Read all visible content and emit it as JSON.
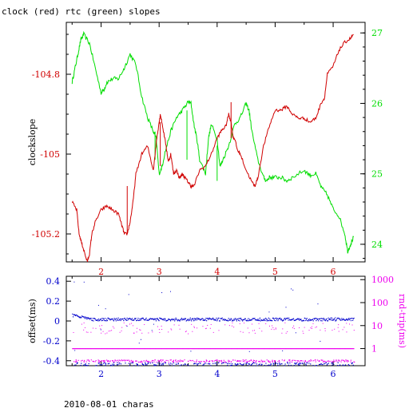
{
  "title": "clock (red) rtc (green) slopes",
  "footer": "2010-08-01 charas",
  "colors": {
    "red": "#d00000",
    "green": "#00dd00",
    "blue": "#0000cc",
    "magenta": "#ee00ee",
    "black": "#000000"
  },
  "chart_data": [
    {
      "type": "line",
      "x_ticks": [
        "2",
        "3",
        "4",
        "5",
        "6"
      ],
      "xlim": [
        1.4,
        6.55
      ],
      "left_axis": {
        "label": "clockslope",
        "ticks": [
          "-104.8",
          "-105",
          "-105.2"
        ],
        "ylim": [
          -105.27,
          -104.67
        ]
      },
      "right_axis": {
        "ticks": [
          "27",
          "26",
          "25",
          "24"
        ],
        "ylim": [
          23.75,
          27.15
        ]
      },
      "series": [
        {
          "name": "clock",
          "axis": "left",
          "color": "red",
          "x": [
            1.5,
            1.58,
            1.62,
            1.66,
            1.7,
            1.76,
            1.8,
            1.84,
            1.9,
            2.0,
            2.1,
            2.2,
            2.3,
            2.36,
            2.4,
            2.45,
            2.5,
            2.55,
            2.6,
            2.7,
            2.8,
            2.9,
            2.96,
            3.0,
            3.02,
            3.06,
            3.12,
            3.16,
            3.2,
            3.25,
            3.3,
            3.35,
            3.4,
            3.45,
            3.5,
            3.55,
            3.6,
            3.7,
            3.8,
            3.9,
            4.0,
            4.08,
            4.15,
            4.2,
            4.24,
            4.28,
            4.3,
            4.35,
            4.4,
            4.5,
            4.6,
            4.65,
            4.7,
            4.8,
            4.9,
            5.0,
            5.1,
            5.2,
            5.3,
            5.4,
            5.5,
            5.6,
            5.7,
            5.8,
            5.85,
            5.9,
            6.0,
            6.1,
            6.2,
            6.3,
            6.35
          ],
          "y": [
            -105.12,
            -105.14,
            -105.2,
            -105.22,
            -105.24,
            -105.27,
            -105.25,
            -105.2,
            -105.17,
            -105.14,
            -105.13,
            -105.14,
            -105.15,
            -105.18,
            -105.2,
            -105.2,
            -105.17,
            -105.12,
            -105.05,
            -105.0,
            -104.98,
            -105.04,
            -104.96,
            -104.92,
            -104.9,
            -104.93,
            -104.98,
            -105.02,
            -105.0,
            -105.05,
            -105.04,
            -105.06,
            -105.05,
            -105.06,
            -105.07,
            -105.08,
            -105.08,
            -105.04,
            -105.03,
            -105.0,
            -104.96,
            -104.94,
            -104.93,
            -104.9,
            -104.92,
            -104.96,
            -104.96,
            -104.99,
            -105.0,
            -105.04,
            -105.07,
            -105.08,
            -105.06,
            -104.98,
            -104.93,
            -104.89,
            -104.89,
            -104.88,
            -104.9,
            -104.91,
            -104.91,
            -104.92,
            -104.91,
            -104.87,
            -104.86,
            -104.8,
            -104.78,
            -104.74,
            -104.72,
            -104.71,
            -104.7
          ]
        },
        {
          "name": "rtc",
          "axis": "right",
          "color": "green",
          "x": [
            1.5,
            1.55,
            1.6,
            1.65,
            1.7,
            1.8,
            1.9,
            2.0,
            2.05,
            2.1,
            2.2,
            2.3,
            2.4,
            2.5,
            2.6,
            2.7,
            2.8,
            2.9,
            2.95,
            3.0,
            3.05,
            3.1,
            3.2,
            3.3,
            3.4,
            3.5,
            3.55,
            3.6,
            3.65,
            3.7,
            3.8,
            3.85,
            3.9,
            4.0,
            4.05,
            4.1,
            4.2,
            4.3,
            4.4,
            4.5,
            4.55,
            4.6,
            4.7,
            4.8,
            4.85,
            4.9,
            5.0,
            5.1,
            5.2,
            5.3,
            5.5,
            5.6,
            5.7,
            5.8,
            5.9,
            6.0,
            6.1,
            6.2,
            6.25,
            6.3,
            6.35
          ],
          "y": [
            26.3,
            26.5,
            26.7,
            26.9,
            26.98,
            26.85,
            26.5,
            26.15,
            26.2,
            26.3,
            26.35,
            26.35,
            26.5,
            26.7,
            26.55,
            26.1,
            25.8,
            25.6,
            25.5,
            25.0,
            25.1,
            25.3,
            25.6,
            25.8,
            25.9,
            26.02,
            26.0,
            25.7,
            25.5,
            25.2,
            25.0,
            25.5,
            25.7,
            25.5,
            25.1,
            25.2,
            25.4,
            25.7,
            25.8,
            26.0,
            25.9,
            25.6,
            25.2,
            24.95,
            24.9,
            24.95,
            24.95,
            24.95,
            24.9,
            24.95,
            25.05,
            24.98,
            25.0,
            24.8,
            24.7,
            24.5,
            24.4,
            24.15,
            23.9,
            24.0,
            24.1
          ]
        }
      ]
    },
    {
      "type": "scatter",
      "x_ticks": [
        "2",
        "3",
        "4",
        "5",
        "6"
      ],
      "xlim": [
        1.4,
        6.55
      ],
      "left_axis": {
        "label": "offset(ms)",
        "ticks": [
          "0.4",
          "0.2",
          "0",
          "-0.2",
          "-0.4"
        ],
        "ylim": [
          -0.45,
          0.45
        ]
      },
      "right_axis": {
        "label": "rnd-trip(ms)",
        "ticks": [
          "1000",
          "100",
          "10",
          "1"
        ],
        "log_scale": true,
        "ylim": [
          0.18,
          1400
        ]
      },
      "series": [
        {
          "name": "offset",
          "axis": "left",
          "color": "blue",
          "x_range": [
            1.5,
            6.35
          ],
          "level": 0.02
        },
        {
          "name": "rnd-trip",
          "axis": "right",
          "color": "magenta",
          "x_range": [
            1.5,
            6.35
          ],
          "levels": [
            0.3,
            1,
            8
          ]
        }
      ]
    }
  ]
}
